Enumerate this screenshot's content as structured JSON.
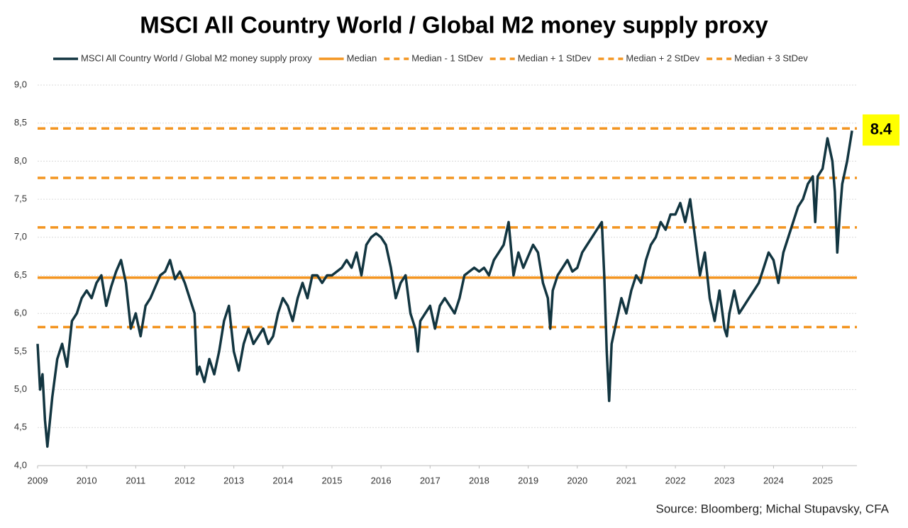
{
  "chart_data": {
    "type": "line",
    "title": "MSCI All Country World / Global M2 money supply proxy",
    "source": "Source: Bloomberg; Michal Stupavsky, CFA",
    "annotation": "8.4",
    "annotation_color": "#ffff00",
    "x": [
      2009.0,
      2009.05,
      2009.1,
      2009.15,
      2009.2,
      2009.3,
      2009.4,
      2009.5,
      2009.6,
      2009.7,
      2009.8,
      2009.9,
      2010.0,
      2010.1,
      2010.2,
      2010.3,
      2010.4,
      2010.5,
      2010.6,
      2010.7,
      2010.8,
      2010.9,
      2011.0,
      2011.1,
      2011.2,
      2011.3,
      2011.4,
      2011.5,
      2011.6,
      2011.7,
      2011.8,
      2011.9,
      2012.0,
      2012.1,
      2012.2,
      2012.25,
      2012.3,
      2012.4,
      2012.5,
      2012.6,
      2012.7,
      2012.8,
      2012.9,
      2013.0,
      2013.1,
      2013.2,
      2013.3,
      2013.4,
      2013.5,
      2013.6,
      2013.7,
      2013.8,
      2013.9,
      2014.0,
      2014.1,
      2014.2,
      2014.3,
      2014.4,
      2014.5,
      2014.6,
      2014.7,
      2014.8,
      2014.9,
      2015.0,
      2015.1,
      2015.2,
      2015.3,
      2015.4,
      2015.5,
      2015.6,
      2015.7,
      2015.8,
      2015.9,
      2016.0,
      2016.1,
      2016.2,
      2016.3,
      2016.4,
      2016.5,
      2016.6,
      2016.7,
      2016.75,
      2016.8,
      2016.9,
      2017.0,
      2017.1,
      2017.2,
      2017.3,
      2017.4,
      2017.5,
      2017.6,
      2017.7,
      2017.8,
      2017.9,
      2018.0,
      2018.1,
      2018.2,
      2018.3,
      2018.4,
      2018.5,
      2018.6,
      2018.7,
      2018.8,
      2018.9,
      2019.0,
      2019.1,
      2019.2,
      2019.3,
      2019.4,
      2019.45,
      2019.5,
      2019.6,
      2019.7,
      2019.8,
      2019.9,
      2020.0,
      2020.1,
      2020.2,
      2020.3,
      2020.4,
      2020.5,
      2020.55,
      2020.6,
      2020.65,
      2020.7,
      2020.8,
      2020.9,
      2021.0,
      2021.1,
      2021.2,
      2021.3,
      2021.4,
      2021.5,
      2021.6,
      2021.7,
      2021.8,
      2021.9,
      2022.0,
      2022.1,
      2022.2,
      2022.3,
      2022.4,
      2022.5,
      2022.6,
      2022.7,
      2022.8,
      2022.9,
      2023.0,
      2023.05,
      2023.1,
      2023.2,
      2023.3,
      2023.4,
      2023.5,
      2023.6,
      2023.7,
      2023.8,
      2023.9,
      2024.0,
      2024.1,
      2024.2,
      2024.3,
      2024.4,
      2024.5,
      2024.6,
      2024.7,
      2024.8,
      2024.85,
      2024.9,
      2025.0,
      2025.1,
      2025.2,
      2025.25,
      2025.3,
      2025.35,
      2025.4,
      2025.5,
      2025.6
    ],
    "series": [
      {
        "name": "MSCI All Country World / Global M2 money supply proxy",
        "color": "#123540",
        "values": [
          5.6,
          5.0,
          5.2,
          4.6,
          4.25,
          4.9,
          5.4,
          5.6,
          5.3,
          5.9,
          6.0,
          6.2,
          6.3,
          6.2,
          6.4,
          6.5,
          6.1,
          6.35,
          6.55,
          6.7,
          6.4,
          5.8,
          6.0,
          5.7,
          6.1,
          6.2,
          6.35,
          6.5,
          6.55,
          6.7,
          6.45,
          6.55,
          6.4,
          6.2,
          6.0,
          5.2,
          5.3,
          5.1,
          5.4,
          5.2,
          5.5,
          5.9,
          6.1,
          5.5,
          5.25,
          5.6,
          5.8,
          5.6,
          5.7,
          5.8,
          5.6,
          5.7,
          6.0,
          6.2,
          6.1,
          5.9,
          6.2,
          6.4,
          6.2,
          6.5,
          6.5,
          6.4,
          6.5,
          6.5,
          6.55,
          6.6,
          6.7,
          6.6,
          6.8,
          6.5,
          6.9,
          7.0,
          7.05,
          7.0,
          6.9,
          6.6,
          6.2,
          6.4,
          6.5,
          6.0,
          5.8,
          5.5,
          5.9,
          6.0,
          6.1,
          5.8,
          6.1,
          6.2,
          6.1,
          6.0,
          6.2,
          6.5,
          6.55,
          6.6,
          6.55,
          6.6,
          6.5,
          6.7,
          6.8,
          6.9,
          7.2,
          6.5,
          6.8,
          6.6,
          6.75,
          6.9,
          6.8,
          6.4,
          6.2,
          5.8,
          6.3,
          6.5,
          6.6,
          6.7,
          6.55,
          6.6,
          6.8,
          6.9,
          7.0,
          7.1,
          7.2,
          6.5,
          5.5,
          4.85,
          5.6,
          5.9,
          6.2,
          6.0,
          6.3,
          6.5,
          6.4,
          6.7,
          6.9,
          7.0,
          7.2,
          7.1,
          7.3,
          7.3,
          7.45,
          7.2,
          7.5,
          7.0,
          6.5,
          6.8,
          6.2,
          5.9,
          6.3,
          5.8,
          5.7,
          6.0,
          6.3,
          6.0,
          6.1,
          6.2,
          6.3,
          6.4,
          6.6,
          6.8,
          6.7,
          6.4,
          6.8,
          7.0,
          7.2,
          7.4,
          7.5,
          7.7,
          7.8,
          7.2,
          7.8,
          7.9,
          8.3,
          8.0,
          7.6,
          6.8,
          7.3,
          7.7,
          8.0,
          8.4
        ]
      }
    ],
    "hlines": [
      {
        "name": "Median",
        "value": 6.47,
        "color": "#f39521",
        "dashed": false
      },
      {
        "name": "Median - 1 StDev",
        "value": 5.82,
        "color": "#f39521",
        "dashed": true
      },
      {
        "name": "Median + 1 StDev",
        "value": 7.13,
        "color": "#f39521",
        "dashed": true
      },
      {
        "name": "Median + 2 StDev",
        "value": 7.78,
        "color": "#f39521",
        "dashed": true
      },
      {
        "name": "Median + 3 StDev",
        "value": 8.43,
        "color": "#f39521",
        "dashed": true
      }
    ],
    "xlim": [
      2009,
      2025.7
    ],
    "xticks": [
      2009,
      2010,
      2011,
      2012,
      2013,
      2014,
      2015,
      2016,
      2017,
      2018,
      2019,
      2020,
      2021,
      2022,
      2023,
      2024,
      2025
    ],
    "ylim": [
      4,
      9
    ],
    "yticks": [
      {
        "value": 4,
        "label": "4,0"
      },
      {
        "value": 4.5,
        "label": "4,5"
      },
      {
        "value": 5,
        "label": "5,0"
      },
      {
        "value": 5.5,
        "label": "5,5"
      },
      {
        "value": 6,
        "label": "6,0"
      },
      {
        "value": 6.5,
        "label": "6,5"
      },
      {
        "value": 7,
        "label": "7,0"
      },
      {
        "value": 7.5,
        "label": "7,5"
      },
      {
        "value": 8,
        "label": "8,0"
      },
      {
        "value": 8.5,
        "label": "8,5"
      },
      {
        "value": 9,
        "label": "9,0"
      }
    ],
    "grid": true
  }
}
